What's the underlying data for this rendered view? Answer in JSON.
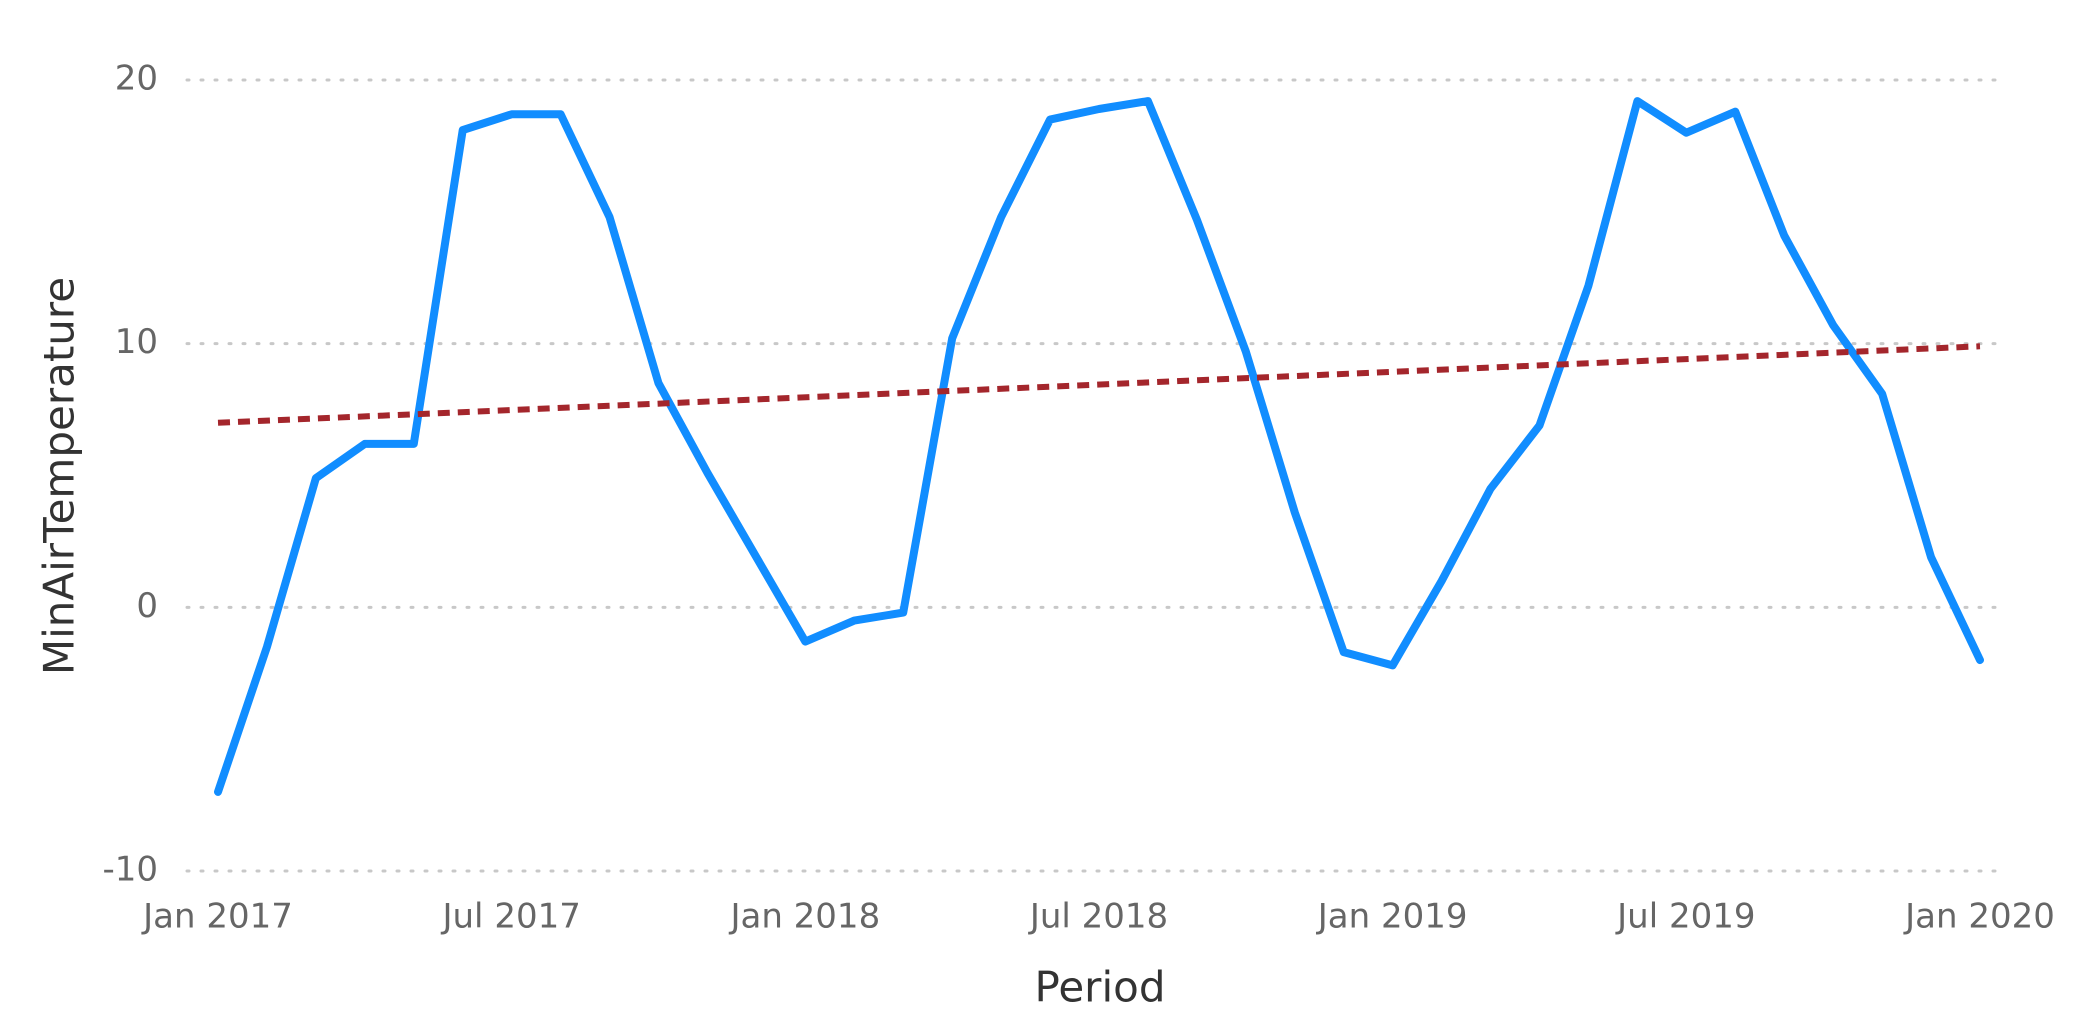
{
  "chart_data": {
    "type": "line",
    "y_label": "MinAirTemperature",
    "x_label": "Period",
    "x": [
      "2017-01",
      "2017-02",
      "2017-03",
      "2017-04",
      "2017-05",
      "2017-06",
      "2017-07",
      "2017-08",
      "2017-09",
      "2017-10",
      "2017-11",
      "2017-12",
      "2018-01",
      "2018-02",
      "2018-03",
      "2018-04",
      "2018-05",
      "2018-06",
      "2018-07",
      "2018-08",
      "2018-09",
      "2018-10",
      "2018-11",
      "2018-12",
      "2019-01",
      "2019-02",
      "2019-03",
      "2019-04",
      "2019-05",
      "2019-06",
      "2019-07",
      "2019-08",
      "2019-09",
      "2019-10",
      "2019-11",
      "2019-12",
      "2020-01"
    ],
    "series": [
      {
        "color": "#118dff",
        "values": [
          -7.0,
          -1.5,
          4.9,
          6.2,
          6.2,
          18.1,
          18.7,
          18.7,
          14.8,
          8.5,
          5.1,
          1.9,
          -1.3,
          -0.5,
          -0.2,
          10.2,
          14.8,
          18.5,
          18.9,
          19.2,
          14.7,
          9.7,
          3.6,
          -1.7,
          -2.2,
          1.0,
          4.5,
          6.9,
          12.2,
          19.2,
          18.0,
          18.8,
          14.1,
          10.7,
          8.1,
          1.9,
          -2.0
        ]
      }
    ],
    "trend": {
      "color": "#a4262c",
      "x": [
        "2017-01",
        "2020-01"
      ],
      "values": [
        7.0,
        9.9
      ]
    },
    "xlim": [
      "2017-01",
      "2020-01"
    ],
    "xticks": [
      {
        "value": "2017-01",
        "label": "Jan 2017"
      },
      {
        "value": "2017-07",
        "label": "Jul 2017"
      },
      {
        "value": "2018-01",
        "label": "Jan 2018"
      },
      {
        "value": "2018-07",
        "label": "Jul 2018"
      },
      {
        "value": "2019-01",
        "label": "Jan 2019"
      },
      {
        "value": "2019-07",
        "label": "Jul 2019"
      },
      {
        "value": "2020-01",
        "label": "Jan 2020"
      }
    ],
    "ylim": [
      -10,
      20
    ],
    "yticks": [
      -10,
      0,
      10,
      20
    ],
    "grid": true
  }
}
